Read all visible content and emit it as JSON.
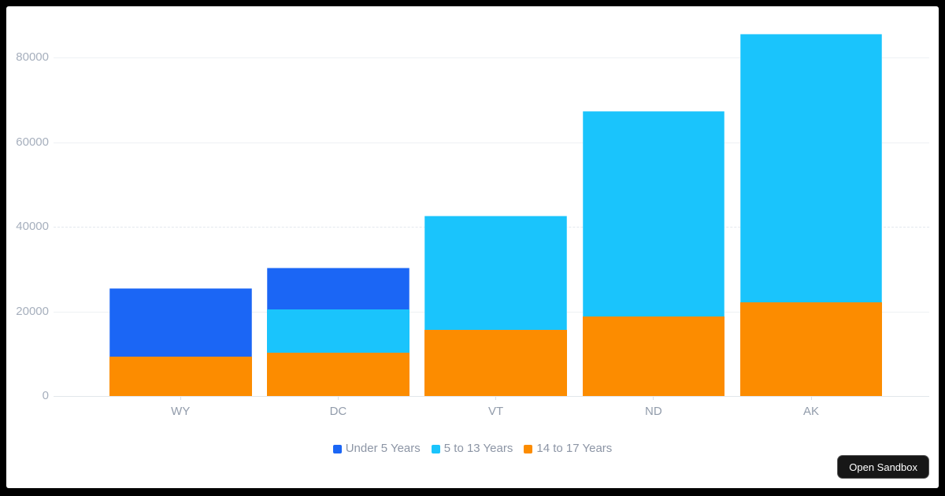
{
  "chart_data": {
    "type": "bar",
    "stacked": true,
    "categories": [
      "WY",
      "DC",
      "VT",
      "ND",
      "AK"
    ],
    "series": [
      {
        "name": "14 to 17 Years",
        "color": "#fc8c00",
        "values": [
          9300,
          10200,
          15700,
          18700,
          22200
        ]
      },
      {
        "name": "5 to 13 Years",
        "color": "#1ac4fc",
        "values": [
          0,
          10300,
          26900,
          48600,
          63400
        ]
      },
      {
        "name": "Under 5 Years",
        "color": "#1b66f5",
        "values": [
          16200,
          9900,
          0,
          0,
          0
        ]
      }
    ],
    "stack_order_bottom_to_top": [
      "14 to 17 Years",
      "5 to 13 Years",
      "Under 5 Years"
    ],
    "stack_totals": [
      25500,
      30400,
      42600,
      67300,
      85600
    ],
    "ylim": [
      0,
      80000
    ],
    "yticks": [
      0,
      20000,
      40000,
      60000,
      80000
    ],
    "y_tick_labels": [
      "0",
      "20000",
      "40000",
      "60000",
      "80000"
    ],
    "grid": "horizontal",
    "legend_position": "bottom-center",
    "legend": [
      {
        "label": "Under 5 Years",
        "color": "#1b66f5"
      },
      {
        "label": "5 to 13 Years",
        "color": "#1ac4fc"
      },
      {
        "label": "14 to 17 Years",
        "color": "#fc8c00"
      }
    ]
  },
  "overlay": {
    "open_sandbox_label": "Open Sandbox"
  }
}
